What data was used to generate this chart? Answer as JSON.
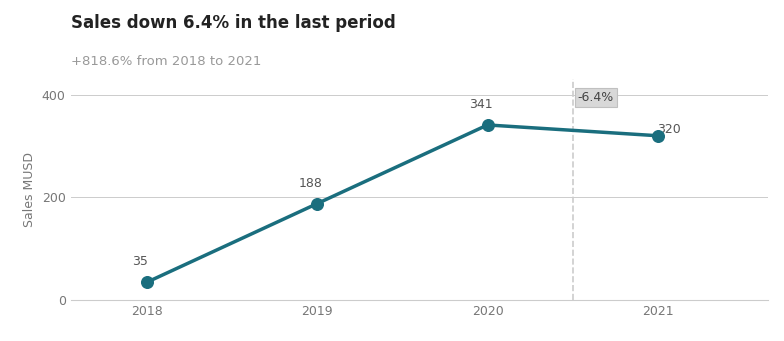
{
  "title": "Sales down 6.4% in the last period",
  "subtitle": "+818.6% from 2018 to 2021",
  "years": [
    2018,
    2019,
    2020,
    2021
  ],
  "values": [
    35,
    188,
    341,
    320
  ],
  "line_color": "#1a6e7e",
  "marker_color": "#1a6e7e",
  "marker_size": 70,
  "line_width": 2.5,
  "ylabel": "Sales MUSD",
  "ylim": [
    0,
    430
  ],
  "yticks": [
    0,
    200,
    400
  ],
  "xlim": [
    2017.55,
    2021.65
  ],
  "dashed_line_x": 2020.5,
  "annotation_label": "-6.4%",
  "annotation_box_facecolor": "#d8d8d8",
  "annotation_box_edgecolor": "#c0c0c0",
  "annotation_text_color": "#444444",
  "title_color": "#222222",
  "subtitle_color": "#999999",
  "background_color": "#ffffff",
  "grid_color": "#cccccc",
  "tick_label_color": "#777777",
  "data_label_color": "#555555",
  "spine_color": "#cccccc",
  "title_fontsize": 12,
  "subtitle_fontsize": 9.5,
  "axis_label_fontsize": 9,
  "data_label_fontsize": 9,
  "annotation_fontsize": 9,
  "ylabel_fontsize": 9
}
